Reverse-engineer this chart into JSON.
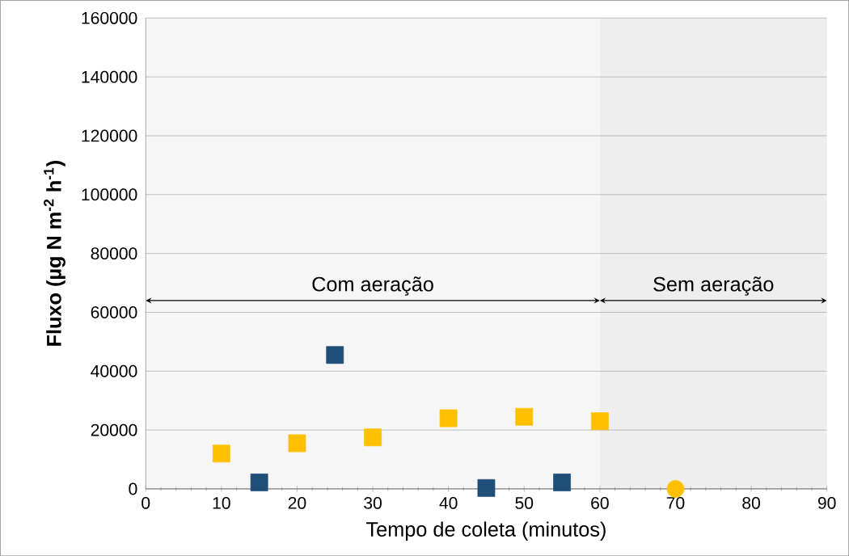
{
  "chart_data": {
    "type": "scatter",
    "xlabel": "Tempo de coleta (minutos)",
    "ylabel": "Fluxo (µg N m$^{-2}$ h$^{-1}$)",
    "xlim": [
      0,
      90
    ],
    "xticks": [
      0,
      10,
      20,
      30,
      40,
      50,
      60,
      70,
      80,
      90
    ],
    "ylim": [
      0,
      160000
    ],
    "yticks": [
      0,
      20000,
      40000,
      60000,
      80000,
      100000,
      120000,
      140000,
      160000
    ],
    "grid": "y",
    "series": [
      {
        "color": "#ffc000",
        "marker": "square",
        "x": [
          10,
          20,
          30,
          40,
          50,
          60
        ],
        "values": [
          12000,
          15500,
          17500,
          24000,
          24500,
          23000
        ]
      },
      {
        "color": "#1f4e79",
        "marker": "square",
        "x": [
          15,
          25,
          45,
          55
        ],
        "values": [
          2200,
          45500,
          300,
          2200
        ]
      },
      {
        "color": "#ffc000",
        "marker": "circle",
        "x": [
          70
        ],
        "values": [
          0
        ]
      }
    ],
    "bands": [
      {
        "axis": "x",
        "from": 0,
        "to": 60,
        "label": "Com aeração",
        "color": "#f6f6f6"
      },
      {
        "axis": "x",
        "from": 60,
        "to": 90,
        "label": "Sem aeração",
        "color": "#eeeeee"
      }
    ]
  }
}
